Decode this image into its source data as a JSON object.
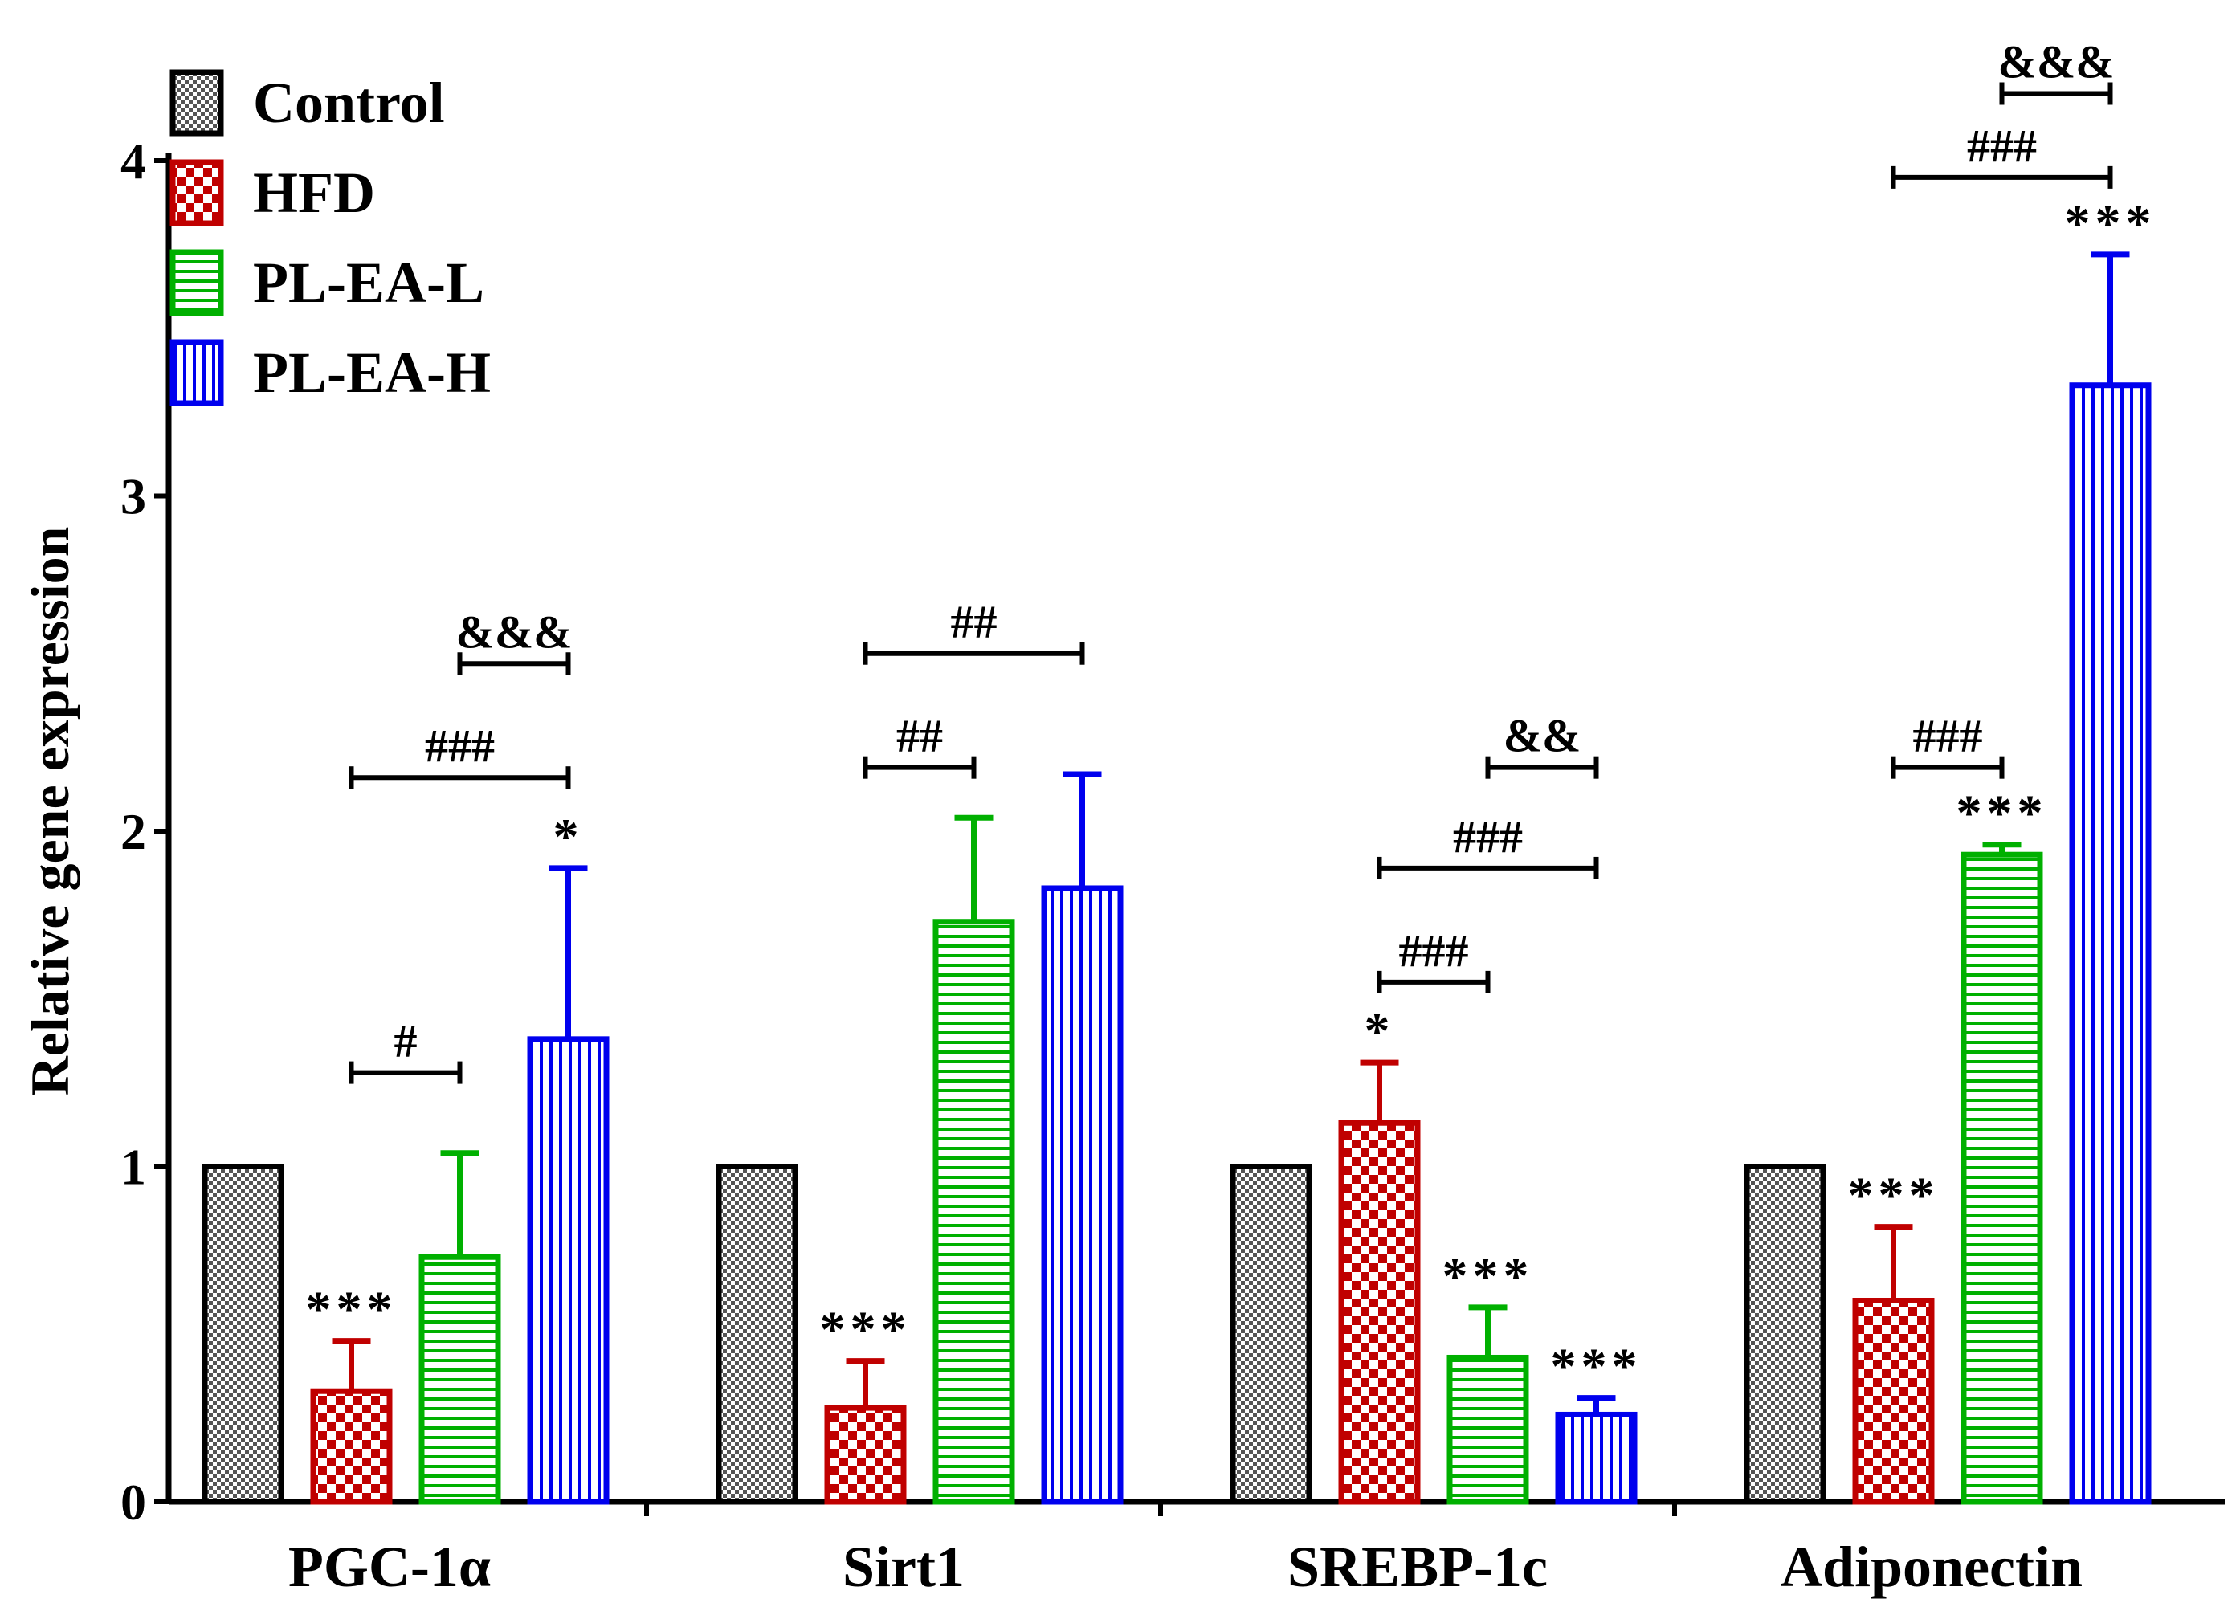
{
  "chart_data": {
    "type": "bar",
    "title": "",
    "xlabel": "",
    "ylabel": "Relative gene expression",
    "ylim": [
      0,
      4
    ],
    "yticks": [
      "0",
      "1",
      "2",
      "3",
      "4"
    ],
    "categories": [
      "PGC-1α",
      "Sirt1",
      "SREBP-1c",
      "Adiponectin"
    ],
    "legend_position": "top-left",
    "series": [
      {
        "name": "Control",
        "color": "#000000",
        "pattern": "checker-gray",
        "values": [
          1.0,
          1.0,
          1.0,
          1.0
        ],
        "errors": [
          0,
          0,
          0,
          0
        ],
        "stars": [
          "",
          "",
          "",
          ""
        ]
      },
      {
        "name": "HFD",
        "color": "#c00000",
        "pattern": "checker-red",
        "values": [
          0.33,
          0.28,
          1.13,
          0.6
        ],
        "errors": [
          0.15,
          0.14,
          0.18,
          0.22
        ],
        "stars": [
          "***",
          "***",
          "*",
          "***"
        ]
      },
      {
        "name": "PL-EA-L",
        "color": "#00b000",
        "pattern": "horizontal-lines",
        "values": [
          0.73,
          1.73,
          0.43,
          1.93
        ],
        "errors": [
          0.31,
          0.31,
          0.15,
          0.03
        ],
        "stars": [
          "",
          "",
          "***",
          "***"
        ]
      },
      {
        "name": "PL-EA-H",
        "color": "#0000ee",
        "pattern": "vertical-lines",
        "values": [
          1.38,
          1.83,
          0.26,
          3.33
        ],
        "errors": [
          0.51,
          0.34,
          0.05,
          0.39
        ],
        "stars": [
          "*",
          "",
          "***",
          "***"
        ]
      }
    ],
    "comparisons": [
      {
        "category": 0,
        "from": 1,
        "to": 2,
        "y": 1.28,
        "label": "#"
      },
      {
        "category": 0,
        "from": 1,
        "to": 3,
        "y": 2.16,
        "label": "###"
      },
      {
        "category": 0,
        "from": 2,
        "to": 3,
        "y": 2.5,
        "label": "&&&"
      },
      {
        "category": 1,
        "from": 1,
        "to": 2,
        "y": 2.19,
        "label": "##"
      },
      {
        "category": 1,
        "from": 1,
        "to": 3,
        "y": 2.53,
        "label": "##"
      },
      {
        "category": 2,
        "from": 1,
        "to": 2,
        "y": 1.55,
        "label": "###"
      },
      {
        "category": 2,
        "from": 1,
        "to": 3,
        "y": 1.89,
        "label": "###"
      },
      {
        "category": 2,
        "from": 2,
        "to": 3,
        "y": 2.19,
        "label": "&&"
      },
      {
        "category": 3,
        "from": 1,
        "to": 2,
        "y": 2.19,
        "label": "###"
      },
      {
        "category": 3,
        "from": 1,
        "to": 3,
        "y": 3.95,
        "label": "###"
      },
      {
        "category": 3,
        "from": 2,
        "to": 3,
        "y": 4.2,
        "label": "&&&"
      }
    ]
  }
}
